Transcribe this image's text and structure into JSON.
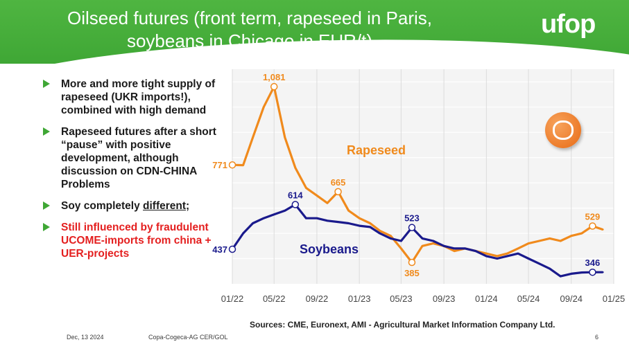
{
  "header": {
    "title_line1": "Oilseed futures (front term, rapeseed in Paris,",
    "title_line2": "soybeans in Chicago in EUR/t)",
    "logo": "ufop",
    "brand_color": "#3fa735"
  },
  "bullets": [
    {
      "text": "More and more tight supply of rapeseed (UKR imports!), combined with high demand",
      "color": "#1b1b1b"
    },
    {
      "text": "Rapeseed futures after a short “pause” with positive development, although discussion on CDN-CHINA Problems",
      "color": "#1b1b1b"
    },
    {
      "text_before": "Soy completely ",
      "text_underlined": "different",
      "text_after": ";",
      "color": "#1b1b1b"
    },
    {
      "text": "Still influenced by fraudulent UCOME-imports from china + UER-projects",
      "color": "#e41f1f"
    }
  ],
  "chart_data": {
    "type": "line",
    "title": "",
    "xlabel": "",
    "ylabel": "",
    "x_ticks": [
      "01/22",
      "05/22",
      "09/22",
      "01/23",
      "05/23",
      "09/23",
      "01/24",
      "05/24",
      "09/24",
      "01/25"
    ],
    "x_range": [
      "2022-01",
      "2025-01"
    ],
    "y_range": [
      300,
      1150
    ],
    "grid": "vertical and horizontal light",
    "series": [
      {
        "name": "Rapeseed",
        "color": "#f08a1c",
        "x": [
          "2022-01",
          "2022-02",
          "2022-03",
          "2022-04",
          "2022-05",
          "2022-06",
          "2022-07",
          "2022-08",
          "2022-09",
          "2022-10",
          "2022-11",
          "2022-12",
          "2023-01",
          "2023-02",
          "2023-03",
          "2023-04",
          "2023-05",
          "2023-06",
          "2023-07",
          "2023-08",
          "2023-09",
          "2023-10",
          "2023-11",
          "2023-12",
          "2024-01",
          "2024-02",
          "2024-03",
          "2024-04",
          "2024-05",
          "2024-06",
          "2024-07",
          "2024-08",
          "2024-09",
          "2024-10",
          "2024-11",
          "2024-12"
        ],
        "values": [
          771,
          770,
          880,
          1000,
          1081,
          880,
          760,
          680,
          650,
          620,
          665,
          590,
          560,
          540,
          510,
          490,
          440,
          385,
          450,
          460,
          450,
          430,
          440,
          430,
          420,
          410,
          420,
          440,
          460,
          470,
          480,
          470,
          490,
          500,
          529,
          515
        ]
      },
      {
        "name": "Soybeans",
        "color": "#1a1a8c",
        "x": [
          "2022-01",
          "2022-02",
          "2022-03",
          "2022-04",
          "2022-05",
          "2022-06",
          "2022-07",
          "2022-08",
          "2022-09",
          "2022-10",
          "2022-11",
          "2022-12",
          "2023-01",
          "2023-02",
          "2023-03",
          "2023-04",
          "2023-05",
          "2023-06",
          "2023-07",
          "2023-08",
          "2023-09",
          "2023-10",
          "2023-11",
          "2023-12",
          "2024-01",
          "2024-02",
          "2024-03",
          "2024-04",
          "2024-05",
          "2024-06",
          "2024-07",
          "2024-08",
          "2024-09",
          "2024-10",
          "2024-11",
          "2024-12"
        ],
        "values": [
          437,
          500,
          540,
          560,
          575,
          590,
          614,
          560,
          560,
          550,
          545,
          540,
          530,
          525,
          500,
          480,
          470,
          523,
          480,
          470,
          450,
          440,
          440,
          430,
          410,
          400,
          410,
          420,
          400,
          380,
          360,
          330,
          340,
          345,
          346,
          346
        ]
      }
    ],
    "annotations": [
      {
        "series": "Rapeseed",
        "x": "2022-01",
        "label": "771",
        "color": "#f08a1c",
        "side": "left"
      },
      {
        "series": "Rapeseed",
        "x": "2022-05",
        "label": "1,081",
        "color": "#f08a1c",
        "side": "top"
      },
      {
        "series": "Rapeseed",
        "x": "2022-11",
        "label": "665",
        "color": "#f08a1c",
        "side": "top"
      },
      {
        "series": "Rapeseed",
        "x": "2023-06",
        "label": "385",
        "color": "#f08a1c",
        "side": "bottom"
      },
      {
        "series": "Rapeseed",
        "x": "2024-11",
        "label": "529",
        "color": "#f08a1c",
        "side": "top"
      },
      {
        "series": "Soybeans",
        "x": "2022-01",
        "label": "437",
        "color": "#1a1a8c",
        "side": "left"
      },
      {
        "series": "Soybeans",
        "x": "2022-07",
        "label": "614",
        "color": "#1a1a8c",
        "side": "top"
      },
      {
        "series": "Soybeans",
        "x": "2023-06",
        "label": "523",
        "color": "#1a1a8c",
        "side": "top"
      },
      {
        "series": "Soybeans",
        "x": "2024-11",
        "label": "346",
        "color": "#1a1a8c",
        "side": "top"
      }
    ],
    "series_labels": [
      {
        "text": "Rapeseed",
        "color": "#f08a1c"
      },
      {
        "text": "Soybeans",
        "color": "#1a1a8c"
      }
    ]
  },
  "footer": {
    "sources": "Sources: CME, Euronext, AMI - Agricultural Market Information Company Ltd.",
    "date": "Dec, 13 2024",
    "org": "Copa-Cogeca-AG CER/GOL",
    "page": "6"
  }
}
